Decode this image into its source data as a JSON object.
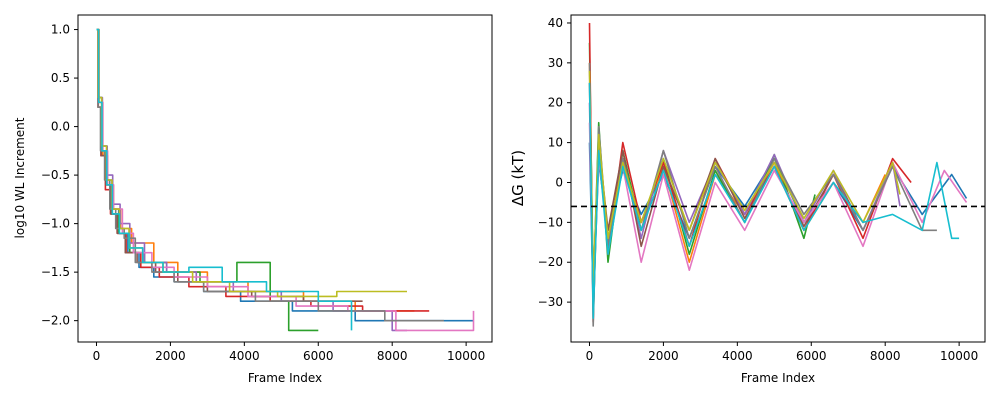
{
  "chart_data": [
    {
      "type": "line",
      "title": "",
      "xlabel": "Frame Index",
      "ylabel": "log10 WL Increment",
      "xlim": [
        -500,
        10700
      ],
      "ylim": [
        -2.22,
        1.15
      ],
      "xticks": [
        0,
        2000,
        4000,
        6000,
        8000,
        10000
      ],
      "yticks": [
        1.0,
        0.5,
        0.0,
        -0.5,
        -1.0,
        -1.5,
        -2.0
      ],
      "xtick_labels": [
        "0",
        "2000",
        "4000",
        "6000",
        "8000",
        "10000"
      ],
      "ytick_labels": [
        "1.0",
        "0.5",
        "0.0",
        "−0.5",
        "−1.0",
        "−1.5",
        "−2.0"
      ],
      "grid": false,
      "step": true,
      "series": [
        {
          "color": "#1f77b4",
          "x": [
            0,
            60,
            150,
            280,
            420,
            600,
            850,
            1150,
            1550,
            2100,
            2900,
            3900,
            5300,
            7000,
            8500,
            10200
          ],
          "values": [
            1.0,
            0.3,
            -0.2,
            -0.55,
            -0.85,
            -1.1,
            -1.3,
            -1.45,
            -1.55,
            -1.6,
            -1.7,
            -1.8,
            -1.9,
            -2.0,
            -2.0,
            -2.0
          ]
        },
        {
          "color": "#ff7f0e",
          "x": [
            0,
            70,
            170,
            300,
            460,
            650,
            950,
            1550,
            2200,
            3000,
            4100,
            5600,
            7000,
            8600
          ],
          "values": [
            1.0,
            0.25,
            -0.3,
            -0.6,
            -0.85,
            -1.05,
            -1.2,
            -1.4,
            -1.5,
            -1.6,
            -1.7,
            -1.8,
            -1.9,
            -1.9
          ]
        },
        {
          "color": "#2ca02c",
          "x": [
            0,
            50,
            140,
            260,
            400,
            600,
            900,
            1300,
            1900,
            2800,
            3800,
            4700,
            5200,
            6000
          ],
          "values": [
            1.0,
            0.3,
            -0.25,
            -0.6,
            -0.9,
            -1.1,
            -1.3,
            -1.4,
            -1.5,
            -1.6,
            -1.4,
            -1.8,
            -2.1,
            -2.1
          ]
        },
        {
          "color": "#d62728",
          "x": [
            0,
            40,
            120,
            240,
            380,
            560,
            800,
            1200,
            1700,
            2500,
            3500,
            4700,
            5800,
            7200,
            9000
          ],
          "values": [
            1.0,
            0.2,
            -0.3,
            -0.65,
            -0.9,
            -1.1,
            -1.3,
            -1.45,
            -1.55,
            -1.65,
            -1.75,
            -1.8,
            -1.85,
            -1.9,
            -1.9
          ]
        },
        {
          "color": "#9467bd",
          "x": [
            0,
            60,
            160,
            290,
            440,
            640,
            900,
            1300,
            1900,
            2700,
            3700,
            5000,
            6400,
            8000,
            8400
          ],
          "values": [
            1.0,
            0.3,
            -0.2,
            -0.5,
            -0.8,
            -1.0,
            -1.2,
            -1.4,
            -1.5,
            -1.6,
            -1.7,
            -1.8,
            -1.9,
            -2.1,
            -2.1
          ]
        },
        {
          "color": "#8c564b",
          "x": [
            0,
            50,
            130,
            250,
            390,
            560,
            780,
            1100,
            1600,
            2200,
            3000,
            4200,
            5600,
            7200
          ],
          "values": [
            1.0,
            0.2,
            -0.3,
            -0.6,
            -0.9,
            -1.1,
            -1.3,
            -1.4,
            -1.5,
            -1.6,
            -1.7,
            -1.75,
            -1.8,
            -1.8
          ]
        },
        {
          "color": "#e377c2",
          "x": [
            0,
            60,
            170,
            300,
            460,
            700,
            1000,
            1500,
            2100,
            3000,
            4100,
            5400,
            6800,
            8100,
            10200
          ],
          "values": [
            1.0,
            0.25,
            -0.25,
            -0.6,
            -0.85,
            -1.1,
            -1.3,
            -1.45,
            -1.55,
            -1.65,
            -1.75,
            -1.85,
            -1.9,
            -2.1,
            -1.9
          ]
        },
        {
          "color": "#7f7f7f",
          "x": [
            0,
            40,
            110,
            220,
            360,
            520,
            750,
            1050,
            1500,
            2100,
            2900,
            4300,
            6000,
            7800,
            9400
          ],
          "values": [
            1.0,
            0.2,
            -0.25,
            -0.55,
            -0.85,
            -1.05,
            -1.15,
            -1.4,
            -1.5,
            -1.6,
            -1.7,
            -1.8,
            -1.9,
            -2.0,
            -2.0
          ]
        },
        {
          "color": "#bcbd22",
          "x": [
            0,
            50,
            140,
            270,
            420,
            620,
            880,
            1250,
            1800,
            2600,
            3600,
            4900,
            6500,
            8400
          ],
          "values": [
            1.0,
            0.3,
            -0.2,
            -0.55,
            -0.85,
            -1.05,
            -1.25,
            -1.4,
            -1.5,
            -1.6,
            -1.7,
            -1.75,
            -1.7,
            -1.7
          ]
        },
        {
          "color": "#17becf",
          "x": [
            0,
            60,
            150,
            280,
            430,
            620,
            880,
            1250,
            1800,
            2500,
            3400,
            4600,
            6000,
            6900
          ],
          "values": [
            1.0,
            0.25,
            -0.25,
            -0.6,
            -0.9,
            -1.1,
            -1.25,
            -1.4,
            -1.5,
            -1.45,
            -1.6,
            -1.7,
            -1.8,
            -2.1
          ]
        }
      ]
    },
    {
      "type": "line",
      "title": "",
      "xlabel": "Frame Index",
      "ylabel": "ΔG (kT)",
      "xlim": [
        -500,
        10700
      ],
      "ylim": [
        -40,
        42
      ],
      "xticks": [
        0,
        2000,
        4000,
        6000,
        8000,
        10000
      ],
      "yticks": [
        40,
        30,
        20,
        10,
        0,
        -10,
        -20,
        -30
      ],
      "xtick_labels": [
        "0",
        "2000",
        "4000",
        "6000",
        "8000",
        "10000"
      ],
      "ytick_labels": [
        "40",
        "30",
        "20",
        "10",
        "0",
        "−10",
        "−20",
        "−30"
      ],
      "grid": false,
      "reference_line": {
        "y": -6,
        "style": "dashed",
        "color": "#000000"
      },
      "series": [
        {
          "color": "#1f77b4",
          "x": [
            0,
            100,
            250,
            500,
            900,
            1400,
            2000,
            2700,
            3400,
            4200,
            5000,
            5800,
            6600,
            7400,
            8200,
            9000,
            9800,
            10200
          ],
          "values": [
            10,
            -30,
            5,
            -12,
            3,
            -8,
            2,
            -14,
            4,
            -6,
            6,
            -10,
            0,
            -12,
            4,
            -8,
            2,
            -4
          ]
        },
        {
          "color": "#ff7f0e",
          "x": [
            0,
            100,
            250,
            500,
            900,
            1400,
            2000,
            2700,
            3400,
            4200,
            5000,
            5800,
            6600,
            7400,
            8000
          ],
          "values": [
            30,
            -25,
            8,
            -15,
            5,
            -10,
            4,
            -20,
            2,
            -8,
            5,
            -12,
            0,
            -10,
            2
          ]
        },
        {
          "color": "#2ca02c",
          "x": [
            0,
            100,
            250,
            500,
            900,
            1400,
            2000,
            2700,
            3400,
            4200,
            5000,
            5800,
            6100
          ],
          "values": [
            35,
            -28,
            15,
            -20,
            8,
            -12,
            6,
            -18,
            3,
            -10,
            7,
            -14,
            -3
          ]
        },
        {
          "color": "#d62728",
          "x": [
            0,
            100,
            250,
            500,
            900,
            1400,
            2000,
            2700,
            3400,
            4200,
            5000,
            5800,
            6600,
            7400,
            8200,
            8700
          ],
          "values": [
            40,
            -35,
            12,
            -18,
            10,
            -10,
            5,
            -16,
            6,
            -8,
            4,
            -12,
            2,
            -14,
            6,
            0
          ]
        },
        {
          "color": "#9467bd",
          "x": [
            0,
            100,
            250,
            500,
            900,
            1400,
            2000,
            2700,
            3400,
            4200,
            5000,
            5800,
            6600,
            7400,
            8200,
            8400
          ],
          "values": [
            20,
            -30,
            10,
            -16,
            6,
            -14,
            8,
            -10,
            5,
            -8,
            7,
            -10,
            3,
            -12,
            5,
            -6
          ]
        },
        {
          "color": "#8c564b",
          "x": [
            0,
            100,
            250,
            500,
            900,
            1400,
            2000,
            2700,
            3400,
            4200,
            5000,
            5800,
            6600,
            7200
          ],
          "values": [
            25,
            -32,
            10,
            -12,
            8,
            -16,
            4,
            -12,
            6,
            -9,
            4,
            -11,
            2,
            -8
          ]
        },
        {
          "color": "#e377c2",
          "x": [
            0,
            100,
            250,
            500,
            900,
            1400,
            2000,
            2700,
            3400,
            4200,
            5000,
            5800,
            6600,
            7400,
            8200,
            9000,
            9600,
            10200
          ],
          "values": [
            15,
            -28,
            6,
            -14,
            4,
            -20,
            2,
            -22,
            0,
            -12,
            3,
            -10,
            0,
            -16,
            5,
            -10,
            3,
            -5
          ]
        },
        {
          "color": "#7f7f7f",
          "x": [
            0,
            100,
            250,
            500,
            900,
            1400,
            2000,
            2700,
            3400,
            4200,
            5000,
            5800,
            6600,
            7400,
            8200,
            9000,
            9400
          ],
          "values": [
            30,
            -36,
            14,
            -16,
            6,
            -12,
            8,
            -14,
            4,
            -10,
            6,
            -8,
            2,
            -12,
            4,
            -12,
            -12
          ]
        },
        {
          "color": "#bcbd22",
          "x": [
            0,
            100,
            250,
            500,
            900,
            1400,
            2000,
            2700,
            3400,
            4200,
            5000,
            5800,
            6600,
            7400,
            8200,
            8400
          ],
          "values": [
            28,
            -26,
            12,
            -14,
            5,
            -10,
            6,
            -12,
            5,
            -7,
            5,
            -9,
            3,
            -10,
            5,
            -3
          ]
        },
        {
          "color": "#17becf",
          "x": [
            0,
            100,
            250,
            500,
            900,
            1400,
            2000,
            2700,
            3400,
            4200,
            5000,
            5800,
            6600,
            7400,
            8200,
            9000,
            9400,
            9800,
            10000
          ],
          "values": [
            25,
            -34,
            8,
            -18,
            4,
            -12,
            3,
            -16,
            2,
            -10,
            4,
            -12,
            0,
            -10,
            -8,
            -12,
            5,
            -14,
            -14
          ]
        }
      ]
    }
  ]
}
